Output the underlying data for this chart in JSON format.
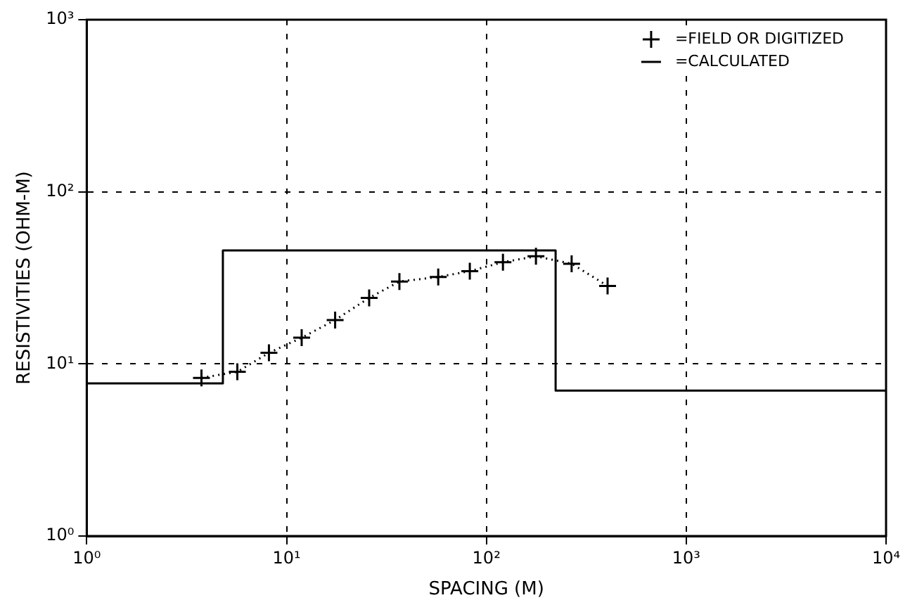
{
  "chart_data": {
    "type": "line",
    "xlabel": "SPACING (M)",
    "ylabel": "RESISTIVITIES (OHM-M)",
    "log": "xy",
    "xlim": [
      1,
      10000
    ],
    "xticks": [
      {
        "value": 1,
        "label": "10⁰"
      },
      {
        "value": 10,
        "label": "10¹"
      },
      {
        "value": 100,
        "label": "10²"
      },
      {
        "value": 1000,
        "label": "10³"
      },
      {
        "value": 10000,
        "label": "10⁴"
      }
    ],
    "ylim": [
      1,
      1000
    ],
    "yticks": [
      {
        "value": 1,
        "label": "10⁰"
      },
      {
        "value": 10,
        "label": "10¹"
      },
      {
        "value": 100,
        "label": "10²"
      },
      {
        "value": 1000,
        "label": "10³"
      }
    ],
    "grid": true,
    "legend": "top right",
    "series": [
      {
        "name": "=FIELD OR DIGITIZED",
        "type": "line",
        "color": "#000000",
        "marker": "cross",
        "line_style": "dotted",
        "x": [
          3.75,
          5.67,
          8.16,
          11.9,
          17.5,
          25.9,
          36.7,
          57.4,
          82.6,
          121,
          177,
          267,
          404
        ],
        "values": [
          8.3,
          9.0,
          11.6,
          14.2,
          18.0,
          24.2,
          30.1,
          32.0,
          34.6,
          39.0,
          42.2,
          38.2,
          28.4
        ]
      },
      {
        "name": "=CALCULATED",
        "type": "step",
        "color": "#000000",
        "marker": "none",
        "line_style": "solid",
        "x": [
          1,
          4.8,
          222,
          10000
        ],
        "values": [
          7.7,
          45.6,
          7.0,
          7.0
        ]
      }
    ]
  }
}
